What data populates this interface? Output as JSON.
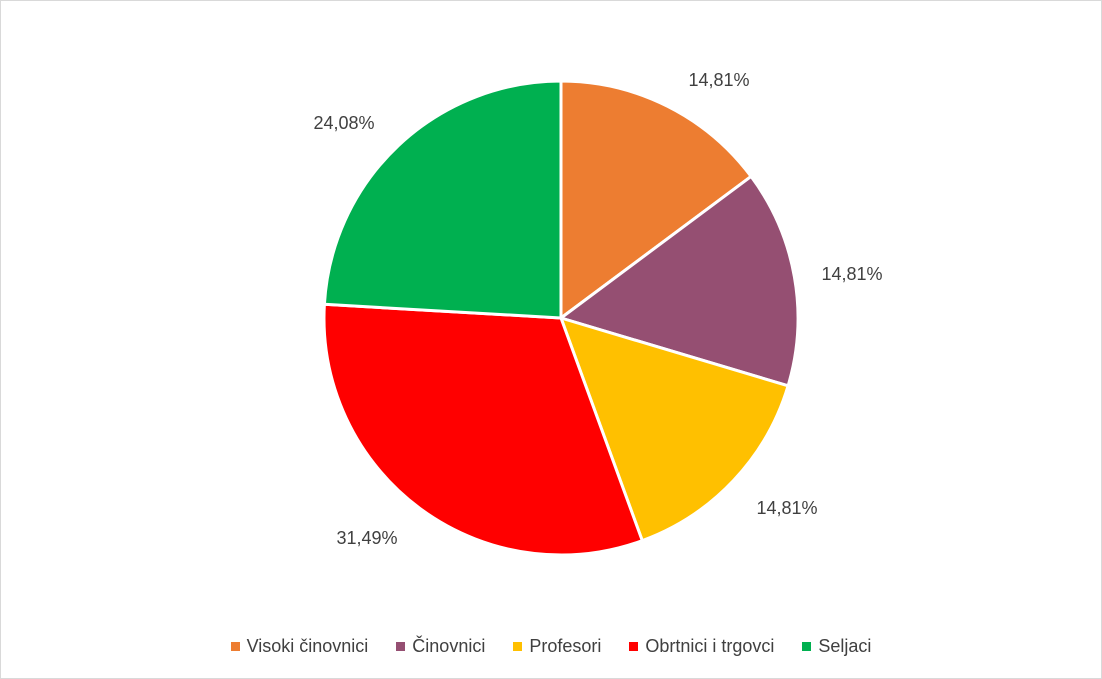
{
  "chart_data": {
    "type": "pie",
    "title": "",
    "categories": [
      "Visoki činovnici",
      "Činovnici",
      "Profesori",
      "Obrtnici i trgovci",
      "Seljaci"
    ],
    "values": [
      14.81,
      14.81,
      14.81,
      31.49,
      24.08
    ],
    "labels": [
      "14,81%",
      "14,81%",
      "14,81%",
      "31,49%",
      "24,08%"
    ],
    "colors": [
      "#ED7D31",
      "#954F72",
      "#FFC000",
      "#FF0000",
      "#00B050"
    ],
    "start_angle": "12 o'clock",
    "direction": "clockwise",
    "legend_position": "bottom"
  }
}
